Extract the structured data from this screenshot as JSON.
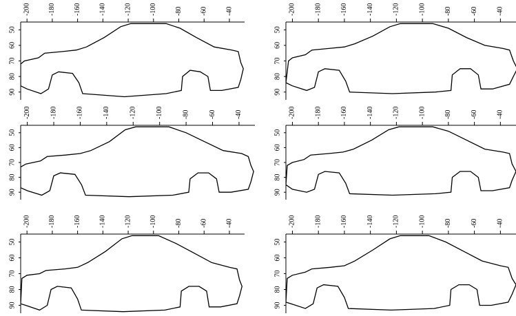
{
  "chart_data": [
    {
      "type": "line",
      "color": "#000000",
      "reversed_y": true,
      "xlim": [
        -205,
        -28
      ],
      "ylim": [
        45,
        95
      ],
      "xticks": [
        -200,
        -180,
        -160,
        -140,
        -120,
        -100,
        -80,
        -60,
        -40
      ],
      "yticks": [
        50,
        60,
        70,
        80,
        90
      ],
      "x": [
        -205,
        -205,
        -202,
        -191,
        -186,
        -172,
        -161,
        -153,
        -139,
        -126,
        -118,
        -90,
        -79,
        -66,
        -52,
        -38,
        -33,
        -31,
        -29,
        -31,
        -33,
        -46,
        -55,
        -57,
        -63,
        -71,
        -77,
        -78,
        -90,
        -123,
        -156,
        -159,
        -164,
        -175,
        -180,
        -183,
        -189,
        -200,
        -205
      ],
      "values": [
        86,
        72,
        70,
        68,
        65,
        64,
        63,
        61,
        55,
        48,
        46,
        46,
        49,
        55,
        61,
        63,
        64,
        71,
        75,
        82,
        87,
        89,
        89,
        80,
        77,
        76,
        80,
        89,
        91,
        93,
        91,
        84,
        78,
        77,
        79,
        88,
        91,
        88,
        86
      ]
    },
    {
      "type": "line",
      "color": "#000000",
      "reversed_y": true,
      "xlim": [
        -205,
        -28
      ],
      "ylim": [
        45,
        95
      ],
      "xticks": [
        -200,
        -180,
        -160,
        -140,
        -120,
        -100,
        -80,
        -60,
        -40
      ],
      "yticks": [
        50,
        60,
        70,
        80,
        90
      ],
      "x": [
        -205,
        -203,
        -200,
        -190,
        -185,
        -172,
        -160,
        -152,
        -138,
        -125,
        -117,
        -92,
        -80,
        -66,
        -52,
        -38,
        -33,
        -30,
        -27,
        -30,
        -33,
        -46,
        -55,
        -57,
        -63,
        -71,
        -77,
        -78,
        -90,
        -123,
        -156,
        -159,
        -164,
        -175,
        -180,
        -183,
        -189,
        -200,
        -205
      ],
      "values": [
        84,
        70,
        68,
        66,
        63,
        62,
        61,
        59,
        54,
        48,
        46,
        46,
        49,
        55,
        60,
        62,
        63,
        70,
        75,
        80,
        85,
        88,
        88,
        79,
        75,
        75,
        79,
        89,
        90,
        91,
        90,
        83,
        76,
        75,
        77,
        87,
        89,
        86,
        84
      ]
    },
    {
      "type": "line",
      "color": "#000000",
      "reversed_y": true,
      "xlim": [
        -205,
        -28
      ],
      "ylim": [
        45,
        95
      ],
      "xticks": [
        -200,
        -180,
        -160,
        -140,
        -120,
        -100,
        -80,
        -60,
        -40
      ],
      "yticks": [
        50,
        60,
        70,
        80,
        90
      ],
      "x": [
        -205,
        -205,
        -201,
        -190,
        -185,
        -171,
        -160,
        -152,
        -138,
        -126,
        -118,
        -93,
        -80,
        -66,
        -52,
        -38,
        -33,
        -31,
        -29,
        -31,
        -33,
        -46,
        -55,
        -57,
        -63,
        -71,
        -77,
        -78,
        -90,
        -123,
        -156,
        -159,
        -164,
        -175,
        -180,
        -183,
        -189,
        -200,
        -205
      ],
      "values": [
        87,
        73,
        71,
        69,
        66,
        65,
        64,
        62,
        56,
        48,
        46,
        46,
        50,
        56,
        62,
        64,
        66,
        72,
        76,
        83,
        88,
        90,
        90,
        81,
        77,
        77,
        81,
        90,
        92,
        93,
        92,
        85,
        78,
        77,
        79,
        89,
        92,
        89,
        87
      ]
    },
    {
      "type": "line",
      "color": "#000000",
      "reversed_y": true,
      "xlim": [
        -205,
        -28
      ],
      "ylim": [
        45,
        95
      ],
      "xticks": [
        -200,
        -180,
        -160,
        -140,
        -120,
        -100,
        -80,
        -60,
        -40
      ],
      "yticks": [
        50,
        60,
        70,
        80,
        90
      ],
      "x": [
        -205,
        -204,
        -200,
        -191,
        -186,
        -172,
        -161,
        -153,
        -139,
        -126,
        -118,
        -92,
        -80,
        -66,
        -52,
        -38,
        -33,
        -31,
        -28,
        -31,
        -33,
        -46,
        -55,
        -57,
        -63,
        -71,
        -77,
        -78,
        -90,
        -123,
        -156,
        -159,
        -164,
        -175,
        -180,
        -183,
        -189,
        -200,
        -205
      ],
      "values": [
        85,
        72,
        70,
        68,
        65,
        64,
        63,
        61,
        55,
        48,
        46,
        46,
        49,
        55,
        61,
        63,
        64,
        71,
        76,
        82,
        87,
        89,
        89,
        80,
        76,
        76,
        80,
        90,
        91,
        92,
        91,
        84,
        77,
        76,
        78,
        88,
        90,
        88,
        85
      ]
    },
    {
      "type": "line",
      "color": "#000000",
      "reversed_y": true,
      "xlim": [
        -205,
        -28
      ],
      "ylim": [
        45,
        95
      ],
      "xticks": [
        -200,
        -180,
        -160,
        -140,
        -120,
        -100,
        -80,
        -60,
        -40
      ],
      "yticks": [
        50,
        60,
        70,
        80,
        90
      ],
      "x": [
        -205,
        -204,
        -200,
        -190,
        -185,
        -170,
        -160,
        -152,
        -138,
        -125,
        -117,
        -96,
        -82,
        -68,
        -54,
        -40,
        -34,
        -32,
        -30,
        -32,
        -34,
        -47,
        -56,
        -58,
        -64,
        -72,
        -78,
        -79,
        -91,
        -124,
        -157,
        -160,
        -165,
        -176,
        -181,
        -184,
        -190,
        -201,
        -205
      ],
      "values": [
        89,
        73,
        71,
        70,
        68,
        67,
        66,
        63,
        56,
        48,
        46,
        46,
        51,
        57,
        63,
        66,
        67,
        74,
        78,
        84,
        89,
        91,
        91,
        81,
        78,
        78,
        81,
        91,
        93,
        94,
        93,
        86,
        79,
        78,
        80,
        90,
        93,
        90,
        89
      ]
    },
    {
      "type": "line",
      "color": "#000000",
      "reversed_y": true,
      "xlim": [
        -205,
        -28
      ],
      "ylim": [
        45,
        95
      ],
      "xticks": [
        -200,
        -180,
        -160,
        -140,
        -120,
        -100,
        -80,
        -60,
        -40
      ],
      "yticks": [
        50,
        60,
        70,
        80,
        90
      ],
      "x": [
        -205,
        -204,
        -200,
        -190,
        -185,
        -171,
        -160,
        -152,
        -138,
        -125,
        -117,
        -95,
        -82,
        -68,
        -54,
        -40,
        -34,
        -31,
        -28,
        -31,
        -34,
        -47,
        -56,
        -58,
        -64,
        -72,
        -78,
        -79,
        -91,
        -124,
        -157,
        -160,
        -165,
        -176,
        -181,
        -184,
        -190,
        -201,
        -205
      ],
      "values": [
        88,
        73,
        71,
        69,
        67,
        66,
        65,
        62,
        55,
        48,
        46,
        46,
        50,
        56,
        62,
        65,
        66,
        73,
        77,
        83,
        88,
        90,
        90,
        80,
        77,
        77,
        80,
        90,
        92,
        93,
        92,
        85,
        78,
        77,
        79,
        89,
        92,
        89,
        88
      ]
    }
  ]
}
